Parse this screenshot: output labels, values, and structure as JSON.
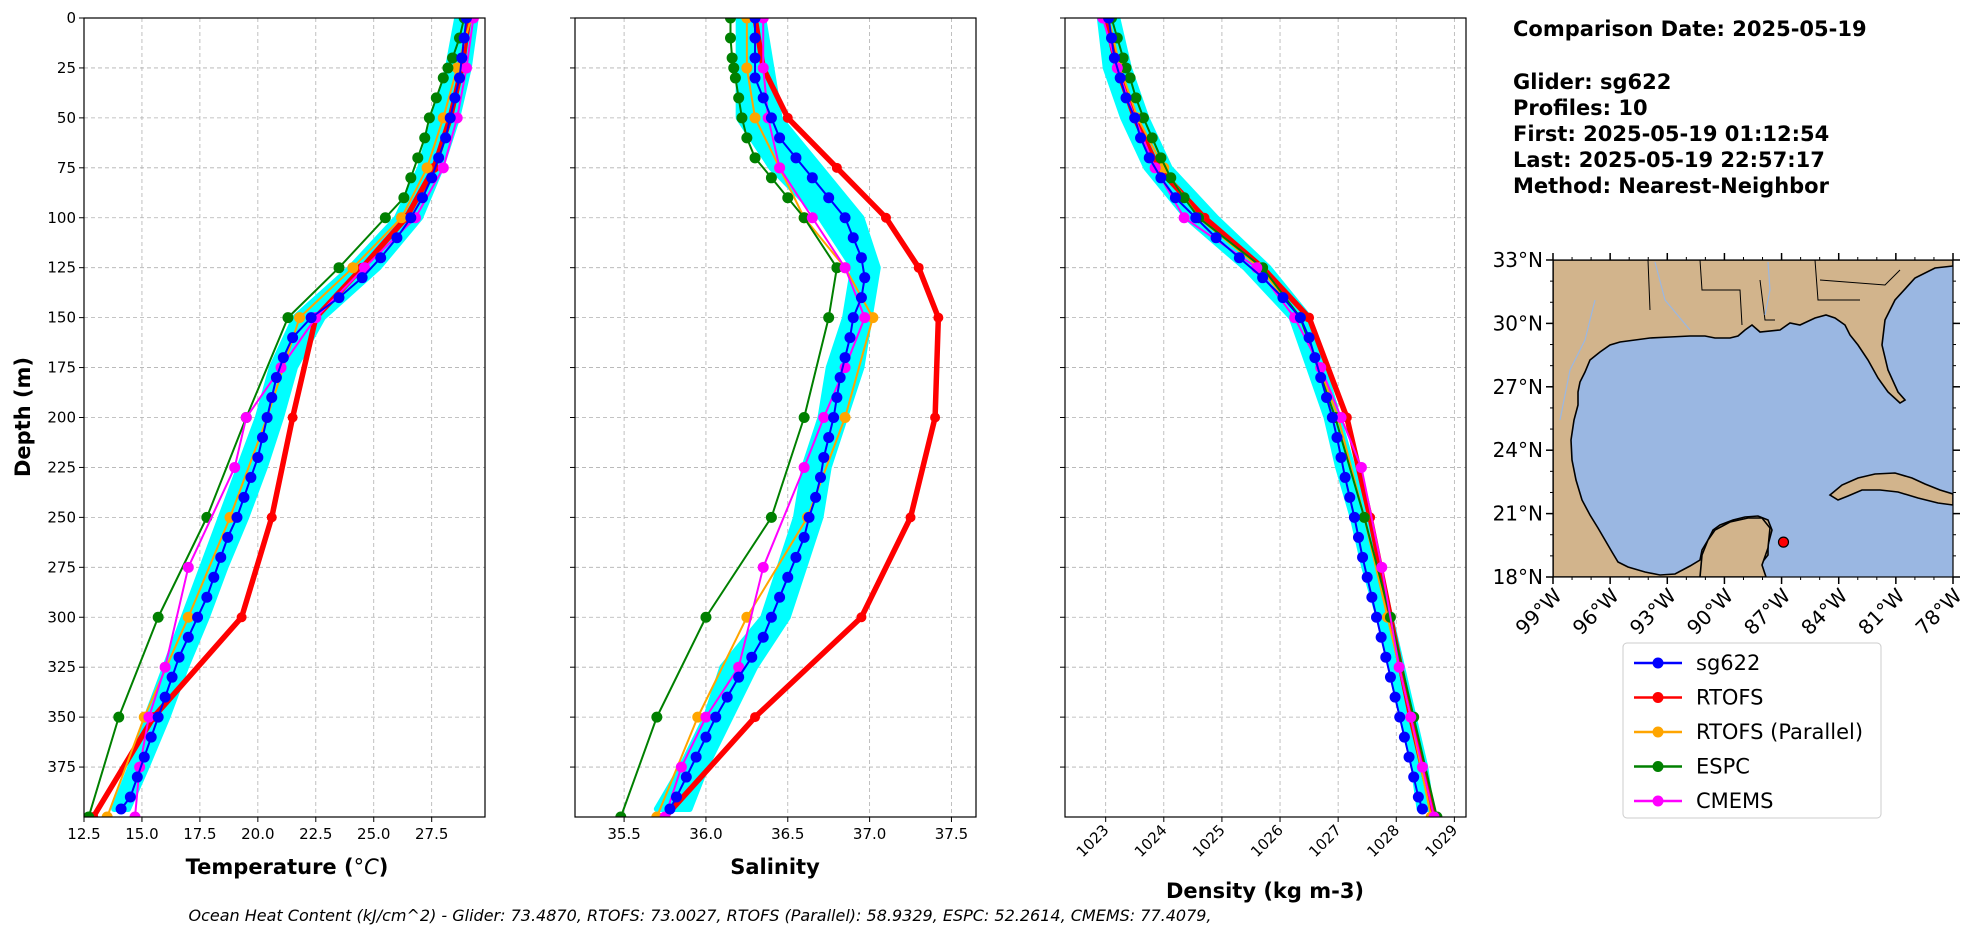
{
  "chart_data": [
    {
      "type": "line",
      "xlabel": "Temperature (°C)",
      "ylabel": "Depth (m)",
      "xlim": [
        12.5,
        29.8
      ],
      "ylim": [
        400,
        0
      ],
      "xticks": [
        "12.5",
        "15.0",
        "17.5",
        "20.0",
        "22.5",
        "25.0",
        "27.5"
      ],
      "xtick_values": [
        12.5,
        15.0,
        17.5,
        20.0,
        22.5,
        25.0,
        27.5
      ],
      "yticks": [
        "0",
        "25",
        "50",
        "75",
        "100",
        "125",
        "150",
        "175",
        "200",
        "225",
        "250",
        "275",
        "300",
        "325",
        "350",
        "375"
      ],
      "ytick_values": [
        0,
        25,
        50,
        75,
        100,
        125,
        150,
        175,
        200,
        225,
        250,
        275,
        300,
        325,
        350,
        375
      ],
      "grid": true,
      "band": {
        "name": "glider envelope",
        "color": "#00ffff",
        "depth": [
          0,
          25,
          50,
          75,
          100,
          125,
          150,
          175,
          200,
          225,
          250,
          275,
          300,
          325,
          350,
          375,
          396
        ],
        "lo": [
          28.6,
          28.2,
          27.6,
          27.0,
          26.0,
          24.0,
          21.6,
          20.6,
          20.0,
          19.2,
          18.4,
          17.6,
          16.8,
          16.0,
          15.2,
          14.5,
          13.8
        ],
        "hi": [
          29.4,
          29.1,
          28.6,
          27.9,
          27.0,
          25.2,
          22.8,
          21.6,
          21.0,
          20.3,
          19.5,
          18.6,
          17.8,
          16.9,
          16.1,
          15.2,
          14.4
        ]
      },
      "series": [
        {
          "name": "sg622",
          "color": "#0000ff",
          "width": 2,
          "marker": 5.5,
          "depth": [
            0,
            10,
            20,
            30,
            40,
            50,
            60,
            70,
            80,
            90,
            100,
            110,
            120,
            130,
            140,
            150,
            160,
            170,
            180,
            190,
            200,
            210,
            220,
            230,
            240,
            250,
            260,
            270,
            280,
            290,
            300,
            310,
            320,
            330,
            340,
            350,
            360,
            370,
            380,
            390,
            396
          ],
          "values": [
            29.0,
            28.9,
            28.8,
            28.7,
            28.5,
            28.3,
            28.1,
            27.8,
            27.5,
            27.1,
            26.6,
            26.0,
            25.3,
            24.5,
            23.5,
            22.3,
            21.5,
            21.1,
            20.8,
            20.6,
            20.4,
            20.2,
            20.0,
            19.7,
            19.4,
            19.1,
            18.7,
            18.4,
            18.1,
            17.8,
            17.4,
            17.0,
            16.6,
            16.3,
            16.0,
            15.7,
            15.4,
            15.1,
            14.8,
            14.5,
            14.1
          ]
        },
        {
          "name": "RTOFS",
          "color": "#ff0000",
          "width": 5.5,
          "marker": 5,
          "depth": [
            0,
            25,
            50,
            75,
            100,
            125,
            150,
            200,
            250,
            300,
            350,
            400
          ],
          "values": [
            29.1,
            28.8,
            28.3,
            27.6,
            26.4,
            24.5,
            22.5,
            21.5,
            20.6,
            19.3,
            15.5,
            12.9
          ]
        },
        {
          "name": "RTOFS (Parallel)",
          "color": "#ffa500",
          "width": 2,
          "marker": 5.5,
          "depth": [
            0,
            25,
            50,
            75,
            100,
            125,
            150,
            200,
            250,
            300,
            350,
            400
          ],
          "values": [
            29.2,
            28.6,
            28.0,
            27.3,
            26.2,
            24.1,
            21.8,
            20.4,
            18.8,
            17.0,
            15.1,
            13.5
          ]
        },
        {
          "name": "ESPC",
          "color": "#008000",
          "width": 2,
          "marker": 5.5,
          "depth": [
            0,
            10,
            20,
            25,
            30,
            40,
            50,
            60,
            70,
            80,
            90,
            100,
            125,
            150,
            200,
            250,
            300,
            350,
            400
          ],
          "values": [
            28.9,
            28.7,
            28.4,
            28.2,
            28.0,
            27.7,
            27.4,
            27.2,
            26.9,
            26.6,
            26.3,
            25.5,
            23.5,
            21.3,
            19.5,
            17.8,
            15.7,
            14.0,
            12.7
          ]
        },
        {
          "name": "CMEMS",
          "color": "#ff00ff",
          "width": 2,
          "marker": 5.5,
          "depth": [
            0,
            25,
            50,
            75,
            100,
            125,
            150,
            175,
            200,
            225,
            275,
            325,
            350,
            375,
            400
          ],
          "values": [
            29.3,
            29.0,
            28.6,
            28.0,
            26.8,
            24.6,
            22.5,
            21.0,
            19.5,
            19.0,
            17.0,
            16.0,
            15.3,
            14.9,
            14.7
          ]
        }
      ]
    },
    {
      "type": "line",
      "xlabel": "Salinity",
      "xlim": [
        35.2,
        37.65
      ],
      "ylim": [
        400,
        0
      ],
      "xticks": [
        "35.5",
        "36.0",
        "36.5",
        "37.0",
        "37.5"
      ],
      "xtick_values": [
        35.5,
        36.0,
        36.5,
        37.0,
        37.5
      ],
      "grid": true,
      "band": {
        "name": "glider envelope",
        "color": "#00ffff",
        "depth": [
          0,
          25,
          50,
          75,
          100,
          125,
          150,
          175,
          200,
          225,
          250,
          275,
          300,
          325,
          350,
          375,
          396
        ],
        "lo": [
          36.2,
          36.2,
          36.2,
          36.4,
          36.7,
          36.9,
          36.85,
          36.75,
          36.7,
          36.6,
          36.55,
          36.45,
          36.35,
          36.1,
          36.0,
          35.85,
          35.7
        ],
        "hi": [
          36.35,
          36.4,
          36.45,
          36.7,
          36.95,
          37.05,
          37.0,
          36.95,
          36.85,
          36.75,
          36.7,
          36.6,
          36.5,
          36.3,
          36.15,
          36.0,
          35.9
        ]
      },
      "series": [
        {
          "name": "sg622",
          "color": "#0000ff",
          "width": 2,
          "marker": 5.5,
          "depth": [
            0,
            10,
            20,
            30,
            40,
            50,
            60,
            70,
            80,
            90,
            100,
            110,
            120,
            130,
            140,
            150,
            160,
            170,
            180,
            190,
            200,
            210,
            220,
            230,
            240,
            250,
            260,
            270,
            280,
            290,
            300,
            310,
            320,
            330,
            340,
            350,
            360,
            370,
            380,
            390,
            396
          ],
          "values": [
            36.3,
            36.3,
            36.3,
            36.3,
            36.35,
            36.4,
            36.45,
            36.55,
            36.65,
            36.75,
            36.85,
            36.9,
            36.95,
            36.97,
            36.95,
            36.9,
            36.88,
            36.85,
            36.82,
            36.8,
            36.78,
            36.75,
            36.72,
            36.7,
            36.67,
            36.63,
            36.6,
            36.55,
            36.5,
            36.45,
            36.4,
            36.35,
            36.28,
            36.2,
            36.13,
            36.06,
            36.0,
            35.94,
            35.88,
            35.82,
            35.78
          ]
        },
        {
          "name": "RTOFS",
          "color": "#ff0000",
          "width": 5.5,
          "marker": 5,
          "depth": [
            0,
            25,
            50,
            75,
            100,
            125,
            150,
            200,
            250,
            300,
            350,
            400
          ],
          "values": [
            36.3,
            36.35,
            36.5,
            36.8,
            37.1,
            37.3,
            37.42,
            37.4,
            37.25,
            36.95,
            36.3,
            35.75
          ]
        },
        {
          "name": "RTOFS (Parallel)",
          "color": "#ffa500",
          "width": 2,
          "marker": 5.5,
          "depth": [
            0,
            25,
            50,
            75,
            100,
            125,
            150,
            200,
            250,
            300,
            350,
            400
          ],
          "values": [
            36.25,
            36.25,
            36.3,
            36.45,
            36.6,
            36.85,
            37.02,
            36.85,
            36.62,
            36.25,
            35.95,
            35.7
          ]
        },
        {
          "name": "ESPC",
          "color": "#008000",
          "width": 2,
          "marker": 5.5,
          "depth": [
            0,
            10,
            20,
            25,
            30,
            40,
            50,
            60,
            70,
            80,
            90,
            100,
            125,
            150,
            200,
            250,
            300,
            350,
            400
          ],
          "values": [
            36.15,
            36.15,
            36.16,
            36.17,
            36.18,
            36.2,
            36.22,
            36.25,
            36.3,
            36.4,
            36.5,
            36.6,
            36.8,
            36.75,
            36.6,
            36.4,
            36.0,
            35.7,
            35.48
          ]
        },
        {
          "name": "CMEMS",
          "color": "#ff00ff",
          "width": 2,
          "marker": 5.5,
          "depth": [
            0,
            25,
            50,
            75,
            100,
            125,
            150,
            175,
            200,
            225,
            275,
            325,
            350,
            375,
            400
          ],
          "values": [
            36.35,
            36.35,
            36.38,
            36.45,
            36.65,
            36.85,
            36.97,
            36.85,
            36.72,
            36.6,
            36.35,
            36.2,
            36.0,
            35.85,
            35.75
          ]
        }
      ]
    },
    {
      "type": "line",
      "xlabel": "Density (kg m-3)",
      "xlim": [
        1022.3,
        1029.2
      ],
      "ylim": [
        400,
        0
      ],
      "xticks": [
        "1023",
        "1024",
        "1025",
        "1026",
        "1027",
        "1028",
        "1029"
      ],
      "xtick_values": [
        1023,
        1024,
        1025,
        1026,
        1027,
        1028,
        1029
      ],
      "grid": true,
      "band": {
        "name": "glider envelope",
        "color": "#00ffff",
        "depth": [
          0,
          25,
          50,
          75,
          100,
          125,
          150,
          175,
          200,
          225,
          250,
          275,
          300,
          325,
          350,
          375,
          396
        ],
        "lo": [
          1022.9,
          1023.0,
          1023.3,
          1023.7,
          1024.4,
          1025.4,
          1026.2,
          1026.5,
          1026.8,
          1027.0,
          1027.25,
          1027.45,
          1027.7,
          1027.9,
          1028.1,
          1028.3,
          1028.4
        ],
        "hi": [
          1023.2,
          1023.4,
          1023.7,
          1024.1,
          1024.9,
          1025.8,
          1026.5,
          1026.75,
          1027.0,
          1027.25,
          1027.5,
          1027.7,
          1027.9,
          1028.1,
          1028.3,
          1028.5,
          1028.6
        ]
      },
      "series": [
        {
          "name": "sg622",
          "color": "#0000ff",
          "width": 2,
          "marker": 5.5,
          "depth": [
            0,
            10,
            20,
            30,
            40,
            50,
            60,
            70,
            80,
            90,
            100,
            110,
            120,
            130,
            140,
            150,
            160,
            170,
            180,
            190,
            200,
            210,
            220,
            230,
            240,
            250,
            260,
            270,
            280,
            290,
            300,
            310,
            320,
            330,
            340,
            350,
            360,
            370,
            380,
            390,
            396
          ],
          "values": [
            1023.05,
            1023.1,
            1023.15,
            1023.25,
            1023.35,
            1023.5,
            1023.6,
            1023.75,
            1023.95,
            1024.2,
            1024.55,
            1024.9,
            1025.3,
            1025.7,
            1026.05,
            1026.35,
            1026.5,
            1026.6,
            1026.7,
            1026.8,
            1026.9,
            1026.98,
            1027.05,
            1027.12,
            1027.2,
            1027.28,
            1027.35,
            1027.42,
            1027.5,
            1027.58,
            1027.66,
            1027.74,
            1027.82,
            1027.9,
            1027.98,
            1028.06,
            1028.14,
            1028.22,
            1028.3,
            1028.38,
            1028.45
          ]
        },
        {
          "name": "RTOFS",
          "color": "#ff0000",
          "width": 5.5,
          "marker": 5,
          "depth": [
            0,
            25,
            50,
            75,
            100,
            125,
            150,
            200,
            250,
            300,
            350,
            400
          ],
          "values": [
            1023.0,
            1023.2,
            1023.5,
            1023.9,
            1024.7,
            1025.7,
            1026.5,
            1027.15,
            1027.55,
            1027.9,
            1028.25,
            1028.65
          ]
        },
        {
          "name": "RTOFS (Parallel)",
          "color": "#ffa500",
          "width": 2,
          "marker": 5.5,
          "depth": [
            0,
            25,
            50,
            75,
            100,
            125,
            150,
            200,
            250,
            300,
            350,
            400
          ],
          "values": [
            1023.05,
            1023.25,
            1023.55,
            1024.0,
            1024.6,
            1025.65,
            1026.35,
            1027.0,
            1027.45,
            1027.85,
            1028.25,
            1028.6
          ]
        },
        {
          "name": "ESPC",
          "color": "#008000",
          "width": 2,
          "marker": 5.5,
          "depth": [
            0,
            10,
            20,
            25,
            30,
            40,
            50,
            60,
            70,
            80,
            90,
            100,
            125,
            150,
            200,
            250,
            300,
            350,
            400
          ],
          "values": [
            1023.1,
            1023.2,
            1023.3,
            1023.35,
            1023.42,
            1023.52,
            1023.65,
            1023.8,
            1023.95,
            1024.12,
            1024.35,
            1024.6,
            1025.7,
            1026.35,
            1026.95,
            1027.45,
            1027.9,
            1028.3,
            1028.7
          ]
        },
        {
          "name": "CMEMS",
          "color": "#ff00ff",
          "width": 2,
          "marker": 5.5,
          "depth": [
            0,
            25,
            50,
            75,
            100,
            125,
            150,
            175,
            200,
            225,
            275,
            325,
            350,
            375,
            400
          ],
          "values": [
            1022.95,
            1023.2,
            1023.5,
            1023.85,
            1024.35,
            1025.6,
            1026.25,
            1026.7,
            1027.05,
            1027.4,
            1027.75,
            1028.05,
            1028.25,
            1028.45,
            1028.65
          ]
        }
      ]
    }
  ],
  "info": {
    "comparison_date": "Comparison Date: 2025-05-19",
    "glider": "Glider: sg622",
    "profiles": "Profiles: 10",
    "first": "First: 2025-05-19 01:12:54",
    "last": "Last: 2025-05-19 22:57:17",
    "method": "Method: Nearest-Neighbor"
  },
  "map": {
    "lat_ticks": [
      "18°N",
      "21°N",
      "24°N",
      "27°N",
      "30°N",
      "33°N"
    ],
    "lat_values": [
      18,
      21,
      24,
      27,
      30,
      33
    ],
    "lon_ticks": [
      "99°W",
      "96°W",
      "93°W",
      "90°W",
      "87°W",
      "84°W",
      "81°W",
      "78°W"
    ],
    "lon_values": [
      -99,
      -96,
      -93,
      -90,
      -87,
      -84,
      -81,
      -78
    ],
    "lon_range": [
      -99,
      -78
    ],
    "lat_range": [
      18,
      33
    ],
    "glider_position": {
      "lon": -86.9,
      "lat": 19.65
    },
    "ocean_color": "#9ab7e2",
    "land_color": "#d2b48c"
  },
  "legend": [
    {
      "label": "sg622",
      "color": "#0000ff"
    },
    {
      "label": "RTOFS",
      "color": "#ff0000"
    },
    {
      "label": "RTOFS (Parallel)",
      "color": "#ffa500"
    },
    {
      "label": "ESPC",
      "color": "#008000"
    },
    {
      "label": "CMEMS",
      "color": "#ff00ff"
    }
  ],
  "footer": "Ocean Heat Content (kJ/cm^2) - Glider: 73.4870,  RTOFS: 73.0027,  RTOFS (Parallel): 58.9329,  ESPC: 52.2614,  CMEMS: 77.4079,"
}
